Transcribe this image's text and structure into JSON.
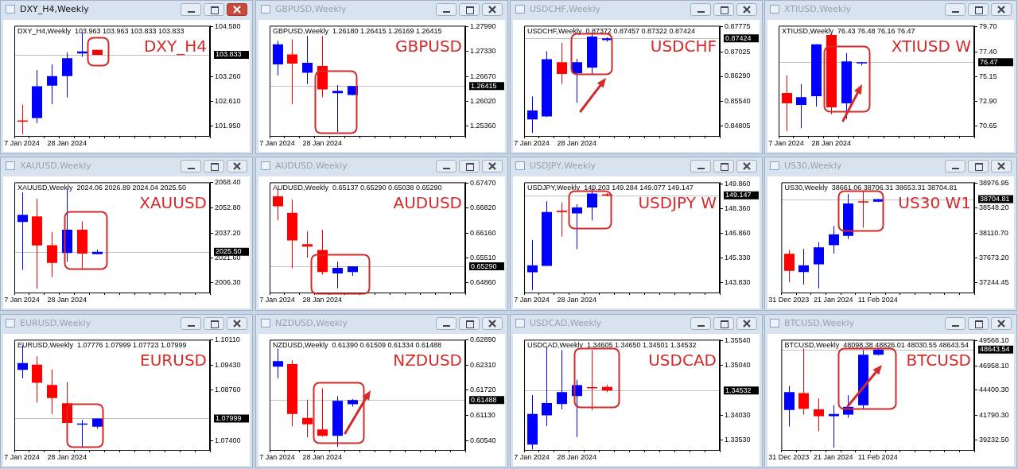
{
  "chart_data": [
    {
      "type": "candlestick",
      "title": "DXY_H4,Weekly",
      "annotations": [
        "DXY_H4,Weekly  103.963 103.963 103.833 103.833",
        "DXY_H4"
      ],
      "grid": false,
      "categories": [
        "7 Jan 2024",
        null,
        null,
        "28 Jan 2024",
        null,
        null,
        null,
        null,
        null,
        null,
        null,
        null,
        null
      ],
      "ohlc": [
        [
          102.1,
          102.51,
          101.73,
          102.09
        ],
        [
          102.16,
          103.43,
          102.03,
          103.0
        ],
        [
          103.02,
          103.58,
          102.53,
          103.27
        ],
        [
          103.27,
          103.89,
          102.71,
          103.74
        ],
        [
          103.87,
          104.42,
          103.78,
          103.92
        ],
        [
          103.963,
          103.963,
          103.833,
          103.833
        ],
        null,
        null,
        null,
        null,
        null,
        null,
        null
      ],
      "colors": [
        "#ff0000",
        "#0000ff",
        "#0000ff",
        "#0000ff",
        "#0000ff",
        "#ff0000",
        null,
        null,
        null,
        null,
        null,
        null,
        null
      ],
      "ylim": [
        101.69,
        104.6
      ],
      "yticks": [
        {
          "value": 104.58,
          "label": "104.580"
        },
        {
          "value": 103.26,
          "label": "103.260"
        },
        {
          "value": 102.61,
          "label": "102.610"
        },
        {
          "value": 101.95,
          "label": "101.950"
        }
      ],
      "ref_lines": [
        {
          "axis": "y",
          "value": 103.833,
          "label": "103.833",
          "color": "#c0c0c0"
        }
      ]
    },
    {
      "type": "candlestick",
      "title": "GBPUSD,Weekly",
      "annotations": [
        "GBPUSD,Weekly  1.26180 1.26415 1.26169 1.26415",
        "GBPUSD"
      ],
      "grid": false,
      "categories": [
        "7 Jan 2024",
        null,
        null,
        "28 Jan 2024",
        null,
        null,
        null,
        null,
        null,
        null,
        null,
        null,
        null
      ],
      "ohlc": [
        [
          1.2699,
          1.2761,
          1.267,
          1.2752
        ],
        [
          1.2725,
          1.2765,
          1.2594,
          1.2701
        ],
        [
          1.2677,
          1.2774,
          1.2647,
          1.2703
        ],
        [
          1.2695,
          1.2774,
          1.2612,
          1.2633
        ],
        [
          1.2623,
          1.2644,
          1.252,
          1.2629
        ],
        [
          1.2618,
          1.26415,
          1.26169,
          1.26415
        ],
        null,
        null,
        null,
        null,
        null,
        null,
        null
      ],
      "colors": [
        "#0000ff",
        "#ff0000",
        "#0000ff",
        "#ff0000",
        "#0000ff",
        "#0000ff",
        null,
        null,
        null,
        null,
        null,
        null,
        null
      ],
      "ylim": [
        1.251,
        1.2801
      ],
      "yticks": [
        {
          "value": 1.2799,
          "label": "1.27990"
        },
        {
          "value": 1.2733,
          "label": "1.27330"
        },
        {
          "value": 1.2667,
          "label": "1.26670"
        },
        {
          "value": 1.2602,
          "label": "1.26020"
        },
        {
          "value": 1.2536,
          "label": "1.25360"
        }
      ],
      "ref_lines": [
        {
          "axis": "y",
          "value": 1.26415,
          "label": "1.26415",
          "color": "#c0c0c0"
        }
      ]
    },
    {
      "type": "candlestick",
      "title": "USDCHF,Weekly",
      "annotations": [
        "USDCHF,Weekly  0.87372 0.87457 0.87322 0.87424",
        "USDCHF"
      ],
      "grid": false,
      "categories": [
        "7 Jan 2024",
        null,
        null,
        "28 Jan 2024",
        null,
        null,
        null,
        null,
        null,
        null,
        null,
        null,
        null
      ],
      "ohlc": [
        [
          0.85,
          0.8569,
          0.846,
          0.8527
        ],
        [
          0.8509,
          0.8704,
          0.8508,
          0.868
        ],
        [
          0.8671,
          0.8729,
          0.8606,
          0.8636
        ],
        [
          0.8638,
          0.8681,
          0.855,
          0.8671
        ],
        [
          0.8655,
          0.8759,
          0.8636,
          0.8748
        ],
        [
          0.87372,
          0.87457,
          0.87322,
          0.87424
        ],
        null,
        null,
        null,
        null,
        null,
        null,
        null
      ],
      "colors": [
        "#0000ff",
        "#0000ff",
        "#ff0000",
        "#0000ff",
        "#0000ff",
        "#0000ff",
        null,
        null,
        null,
        null,
        null,
        null,
        null
      ],
      "ylim": [
        0.8451,
        0.878
      ],
      "yticks": [
        0.87775,
        0.87025,
        {
          "value": 0.8629,
          "label": "0.86290"
        },
        {
          "value": 0.8554,
          "label": "0.85540"
        },
        0.84805
      ],
      "ref_lines": [
        {
          "axis": "y",
          "value": 0.87424,
          "label": "0.87424",
          "color": "#c0c0c0"
        }
      ]
    },
    {
      "type": "candlestick",
      "title": "XTIUSD,Weekly",
      "annotations": [
        "XTIUSD,Weekly  76.43 76.48 76.16 76.47",
        "XTIUSD W"
      ],
      "grid": false,
      "categories": [
        "7 Jan 2024",
        null,
        null,
        "28 Jan 2024",
        null,
        null,
        null,
        null,
        null,
        null,
        null,
        null,
        null
      ],
      "ohlc": [
        [
          73.65,
          75.26,
          70.17,
          72.71
        ],
        [
          72.57,
          74.47,
          70.45,
          73.28
        ],
        [
          73.36,
          78.1,
          72.43,
          78.09
        ],
        [
          78.94,
          79.13,
          71.72,
          72.35
        ],
        [
          72.71,
          77.3,
          71.3,
          76.53
        ],
        [
          76.43,
          76.48,
          76.16,
          76.47
        ],
        null,
        null,
        null,
        null,
        null,
        null,
        null
      ],
      "colors": [
        "#ff0000",
        "#0000ff",
        "#0000ff",
        "#ff0000",
        "#0000ff",
        "#0000ff",
        null,
        null,
        null,
        null,
        null,
        null,
        null
      ],
      "ylim": [
        69.75,
        79.78
      ],
      "yticks": [
        {
          "value": 79.7,
          "label": "79.70"
        },
        {
          "value": 77.4,
          "label": "77.40"
        },
        75.15,
        {
          "value": 72.9,
          "label": "72.90"
        },
        70.65
      ],
      "ref_lines": [
        {
          "axis": "y",
          "value": 76.47,
          "label": "76.47",
          "color": "#c0c0c0"
        }
      ]
    },
    {
      "type": "candlestick",
      "title": "XAUUSD,Weekly",
      "annotations": [
        "XAUUSD,Weekly  2024.06 2026.89 2024.04 2025.50",
        "XAUUSD"
      ],
      "grid": false,
      "categories": [
        "7 Jan 2024",
        null,
        null,
        "28 Jan 2024",
        null,
        null,
        null,
        null,
        null,
        null,
        null,
        null,
        null
      ],
      "ohlc": [
        [
          2044.0,
          2062.3,
          2014.2,
          2048.4
        ],
        [
          2047.5,
          2058.4,
          2002.6,
          2029.4
        ],
        [
          2029.6,
          2037.8,
          2009.8,
          2018.6
        ],
        [
          2024.8,
          2064.6,
          2019.4,
          2039.2
        ],
        [
          2039.2,
          2044.4,
          2015.1,
          2024.4
        ],
        [
          2024.06,
          2026.89,
          2024.04,
          2025.5
        ],
        null,
        null,
        null,
        null,
        null,
        null,
        null
      ],
      "colors": [
        "#0000ff",
        "#ff0000",
        "#ff0000",
        "#0000ff",
        "#ff0000",
        "#0000ff",
        null,
        null,
        null,
        null,
        null,
        null,
        null
      ],
      "ylim": [
        2000.2,
        2068.6
      ],
      "yticks": [
        {
          "value": 2068.4,
          "label": "2068.40"
        },
        {
          "value": 2052.8,
          "label": "2052.80"
        },
        {
          "value": 2037.2,
          "label": "2037.20"
        },
        {
          "value": 2021.6,
          "label": "2021.60"
        },
        {
          "value": 2006.3,
          "label": "2006.30"
        }
      ],
      "ref_lines": [
        {
          "axis": "y",
          "value": 2025.5,
          "label": "2025.50",
          "color": "#c0c0c0"
        }
      ]
    },
    {
      "type": "candlestick",
      "title": "AUDUSD,Weekly",
      "annotations": [
        "AUDUSD,Weekly  0.65137 0.65290 0.65038 0.65290",
        "AUDUSD"
      ],
      "grid": false,
      "categories": [
        "7 Jan 2024",
        null,
        null,
        "28 Jan 2024",
        null,
        null,
        null,
        null,
        null,
        null,
        null,
        null,
        null
      ],
      "ohlc": [
        [
          0.6713,
          0.6732,
          0.665,
          0.6687
        ],
        [
          0.667,
          0.6705,
          0.6524,
          0.6597
        ],
        [
          0.6587,
          0.6621,
          0.6552,
          0.6581
        ],
        [
          0.6572,
          0.6625,
          0.6507,
          0.6514
        ],
        [
          0.651,
          0.6541,
          0.6471,
          0.6525
        ],
        [
          0.65137,
          0.6529,
          0.65038,
          0.6529
        ],
        null,
        null,
        null,
        null,
        null,
        null,
        null
      ],
      "colors": [
        "#ff0000",
        "#ff0000",
        "#ff0000",
        "#ff0000",
        "#0000ff",
        "#0000ff",
        null,
        null,
        null,
        null,
        null,
        null,
        null
      ],
      "ylim": [
        0.646,
        0.675
      ],
      "yticks": [
        {
          "value": 0.6747,
          "label": "0.67470"
        },
        {
          "value": 0.6682,
          "label": "0.66820"
        },
        {
          "value": 0.6616,
          "label": "0.66160"
        },
        {
          "value": 0.6551,
          "label": "0.65510"
        },
        {
          "value": 0.6486,
          "label": "0.64860"
        }
      ],
      "ref_lines": [
        {
          "axis": "y",
          "value": 0.6529,
          "label": "0.65290",
          "color": "#c0c0c0"
        }
      ]
    },
    {
      "type": "candlestick",
      "title": "USDJPY,Weekly",
      "annotations": [
        "USDJPY,Weekly  149.203 149.284 149.077 149.147",
        "USDJPY W"
      ],
      "grid": false,
      "categories": [
        "7 Jan 2024",
        null,
        null,
        "28 Jan 2024",
        null,
        null,
        null,
        null,
        null,
        null,
        null,
        null,
        null
      ],
      "ohlc": [
        [
          144.47,
          146.43,
          143.38,
          144.89
        ],
        [
          144.85,
          148.79,
          144.85,
          148.13
        ],
        [
          148.22,
          148.71,
          146.64,
          148.13
        ],
        [
          148.05,
          148.6,
          145.88,
          148.41
        ],
        [
          148.41,
          149.54,
          147.62,
          149.26
        ],
        [
          149.203,
          149.284,
          149.077,
          149.147
        ],
        null,
        null,
        null,
        null,
        null,
        null,
        null
      ],
      "colors": [
        "#0000ff",
        "#0000ff",
        "#ff0000",
        "#0000ff",
        "#0000ff",
        "#ff0000",
        null,
        null,
        null,
        null,
        null,
        null,
        null
      ],
      "ylim": [
        143.23,
        149.94
      ],
      "yticks": [
        {
          "value": 149.86,
          "label": "149.860"
        },
        {
          "value": 148.36,
          "label": "148.360"
        },
        {
          "value": 146.86,
          "label": "146.860"
        },
        {
          "value": 145.33,
          "label": "145.330"
        },
        {
          "value": 143.83,
          "label": "143.830"
        }
      ],
      "ref_lines": [
        {
          "axis": "y",
          "value": 149.147,
          "label": "149.147",
          "color": "#c0c0c0"
        }
      ]
    },
    {
      "type": "candlestick",
      "title": "US30,Weekly",
      "annotations": [
        "US30,Weekly  38661.06 38706.31 38653.31 38704.81",
        "US30 W1"
      ],
      "grid": false,
      "categories": [
        "31 Dec 2023",
        null,
        null,
        "21 Jan 2024",
        null,
        null,
        "11 Feb 2024",
        null,
        null,
        null,
        null,
        null,
        null
      ],
      "ohlc": [
        [
          37748,
          37818,
          37250,
          37450
        ],
        [
          37429,
          37835,
          37212,
          37548
        ],
        [
          37564,
          37954,
          37142,
          37862
        ],
        [
          37900,
          38235,
          37753,
          38089
        ],
        [
          38062,
          38793,
          38008,
          38630
        ],
        [
          38668,
          38847,
          38208,
          38647
        ],
        [
          38661.06,
          38706.31,
          38653.31,
          38704.81
        ],
        null,
        null,
        null,
        null,
        null,
        null
      ],
      "colors": [
        "#ff0000",
        "#0000ff",
        "#0000ff",
        "#0000ff",
        "#0000ff",
        "#ff0000",
        "#0000ff",
        null,
        null,
        null,
        null,
        null,
        null
      ],
      "ylim": [
        37071,
        38999
      ],
      "yticks": [
        38976.95,
        {
          "value": 38548.2,
          "label": "38548.20"
        },
        {
          "value": 38110.7,
          "label": "38110.70"
        },
        {
          "value": 37673.2,
          "label": "37673.20"
        },
        37244.45
      ],
      "ref_lines": [
        {
          "axis": "y",
          "value": 38704.81,
          "label": "38704.81",
          "color": "#c0c0c0"
        }
      ]
    },
    {
      "type": "candlestick",
      "title": "EURUSD,Weekly",
      "annotations": [
        "EURUSD,Weekly  1.07776 1.07999 1.07723 1.07999",
        "EURUSD"
      ],
      "grid": false,
      "categories": [
        "7 Jan 2024",
        null,
        null,
        "28 Jan 2024",
        null,
        null,
        null,
        null,
        null,
        null,
        null,
        null,
        null
      ],
      "ohlc": [
        [
          1.0931,
          1.0997,
          1.0908,
          1.0949
        ],
        [
          1.0945,
          1.0967,
          1.0843,
          1.0896
        ],
        [
          1.089,
          1.0932,
          1.0812,
          1.0855
        ],
        [
          1.0841,
          1.0898,
          1.078,
          1.0788
        ],
        [
          1.0784,
          1.0796,
          1.0723,
          1.0786
        ],
        [
          1.07776,
          1.07999,
          1.07723,
          1.07999
        ],
        null,
        null,
        null,
        null,
        null,
        null,
        null
      ],
      "colors": [
        "#0000ff",
        "#ff0000",
        "#ff0000",
        "#ff0000",
        "#0000ff",
        "#0000ff",
        null,
        null,
        null,
        null,
        null,
        null,
        null
      ],
      "ylim": [
        1.0715,
        1.1012
      ],
      "yticks": [
        {
          "value": 1.1011,
          "label": "1.10110"
        },
        {
          "value": 1.0943,
          "label": "1.09430"
        },
        {
          "value": 1.0876,
          "label": "1.08760"
        },
        {
          "value": 1.074,
          "label": "1.07400"
        }
      ],
      "ref_lines": [
        {
          "axis": "y",
          "value": 1.07999,
          "label": "1.07999",
          "color": "#c0c0c0"
        }
      ]
    },
    {
      "type": "candlestick",
      "title": "NZDUSD,Weekly",
      "annotations": [
        "NZDUSD,Weekly  0.61390 0.61509 0.61334 0.61488",
        "NZDUSD"
      ],
      "grid": false,
      "categories": [
        "7 Jan 2024",
        null,
        null,
        "28 Jan 2024",
        null,
        null,
        null,
        null,
        null,
        null,
        null,
        null,
        null
      ],
      "ohlc": [
        [
          0.6227,
          0.6269,
          0.62,
          0.624
        ],
        [
          0.6233,
          0.6242,
          0.6087,
          0.6116
        ],
        [
          0.6107,
          0.6149,
          0.6061,
          0.6092
        ],
        [
          0.608,
          0.6176,
          0.6063,
          0.6065
        ],
        [
          0.6065,
          0.6158,
          0.6039,
          0.6147
        ],
        [
          0.6139,
          0.61509,
          0.61334,
          0.61488
        ],
        null,
        null,
        null,
        null,
        null,
        null,
        null
      ],
      "colors": [
        "#0000ff",
        "#ff0000",
        "#ff0000",
        "#ff0000",
        "#0000ff",
        "#0000ff",
        null,
        null,
        null,
        null,
        null,
        null,
        null
      ],
      "ylim": [
        0.6032,
        0.629
      ],
      "yticks": [
        {
          "value": 0.6289,
          "label": "0.62890"
        },
        {
          "value": 0.6231,
          "label": "0.62310"
        },
        {
          "value": 0.6172,
          "label": "0.61720"
        },
        {
          "value": 0.6113,
          "label": "0.61130"
        },
        {
          "value": 0.6054,
          "label": "0.60540"
        }
      ],
      "ref_lines": [
        {
          "axis": "y",
          "value": 0.61488,
          "label": "0.61488",
          "color": "#c0c0c0"
        }
      ]
    },
    {
      "type": "candlestick",
      "title": "USDCAD,Weekly",
      "annotations": [
        "USDCAD,Weekly  1.34605 1.34650 1.34501 1.34532",
        "USDCAD"
      ],
      "grid": false,
      "categories": [
        "7 Jan 2024",
        null,
        null,
        "28 Jan 2024",
        null,
        null,
        null,
        null,
        null,
        null,
        null,
        null,
        null
      ],
      "ohlc": [
        [
          1.3344,
          1.3444,
          1.3334,
          1.3406
        ],
        [
          1.3403,
          1.3541,
          1.3381,
          1.3428
        ],
        [
          1.3426,
          1.3535,
          1.3415,
          1.345
        ],
        [
          1.3442,
          1.3475,
          1.3359,
          1.3464
        ],
        [
          1.346,
          1.3535,
          1.3413,
          1.3458
        ],
        [
          1.34605,
          1.3465,
          1.34501,
          1.34532
        ],
        null,
        null,
        null,
        null,
        null,
        null,
        null
      ],
      "colors": [
        "#0000ff",
        "#0000ff",
        "#0000ff",
        "#0000ff",
        "#ff0000",
        "#ff0000",
        null,
        null,
        null,
        null,
        null,
        null,
        null
      ],
      "ylim": [
        1.3333,
        1.3556
      ],
      "yticks": [
        {
          "value": 1.3554,
          "label": "1.35540"
        },
        {
          "value": 1.3504,
          "label": "1.35040"
        },
        {
          "value": 1.3403,
          "label": "1.34030"
        },
        {
          "value": 1.3353,
          "label": "1.33530"
        }
      ],
      "ref_lines": [
        {
          "axis": "y",
          "value": 1.34532,
          "label": "1.34532",
          "color": "#c0c0c0"
        }
      ]
    },
    {
      "type": "candlestick",
      "title": "BTCUSD,Weekly",
      "annotations": [
        "BTCUSD,Weekly  48098.38 48826.01 48030.55 48643.54",
        "BTCUSD"
      ],
      "grid": false,
      "categories": [
        "31 Dec 2023",
        null,
        null,
        "21 Jan 2024",
        null,
        null,
        "11 Feb 2024",
        null,
        null,
        null,
        null,
        null,
        null
      ],
      "ohlc": [
        [
          42352,
          44855,
          40630,
          44205
        ],
        [
          44108,
          48755,
          41865,
          42483
        ],
        [
          42418,
          43555,
          40143,
          41703
        ],
        [
          41703,
          42840,
          38420,
          41930
        ],
        [
          41865,
          43880,
          41540,
          42678
        ],
        [
          42840,
          48590,
          42418,
          48105
        ],
        [
          48098.38,
          48826.01,
          48030.55,
          48643.54
        ],
        null,
        null,
        null,
        null,
        null,
        null
      ],
      "colors": [
        "#0000ff",
        "#ff0000",
        "#ff0000",
        "#0000ff",
        "#0000ff",
        "#0000ff",
        "#0000ff",
        null,
        null,
        null,
        null,
        null,
        null
      ],
      "ylim": [
        38190,
        49666
      ],
      "yticks": [
        {
          "value": 49568.1,
          "label": "49568.10"
        },
        {
          "value": 46958.1,
          "label": "46958.10"
        },
        {
          "value": 44400.3,
          "label": "44400.30"
        },
        {
          "value": 41790.3,
          "label": "41790.30"
        },
        {
          "value": 39232.5,
          "label": "39232.50"
        }
      ],
      "ref_lines": [
        {
          "axis": "y",
          "value": 48643.54,
          "label": "48643.54",
          "color": "#c0c0c0"
        }
      ]
    }
  ]
}
